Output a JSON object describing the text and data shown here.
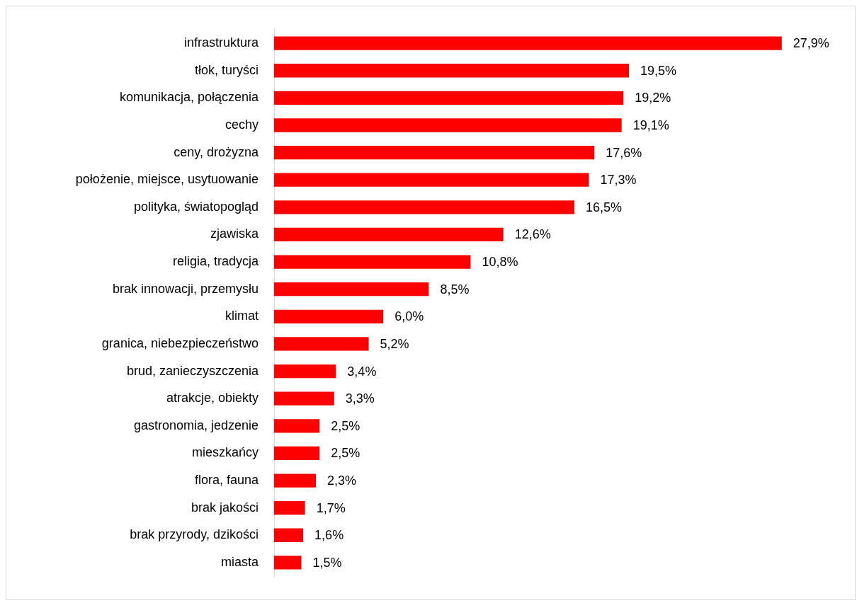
{
  "chart_data": {
    "type": "bar",
    "orientation": "horizontal",
    "tick_labels": "y",
    "categories": [
      "infrastruktura",
      "tłok, turyści",
      "komunikacja, połączenia",
      "cechy",
      "ceny, drożyzna",
      "położenie, miejsce, usytuowanie",
      "polityka, światopogląd",
      "zjawiska",
      "religia, tradycja",
      "brak innowacji, przemysłu",
      "klimat",
      "granica, niebezpieczeństwo",
      "brud, zanieczyszczenia",
      "atrakcje, obiekty",
      "gastronomia, jedzenie",
      "mieszkańcy",
      "flora, fauna",
      "brak jakości",
      "brak przyrody, dzikości",
      "miasta"
    ],
    "values": [
      27.9,
      19.5,
      19.2,
      19.1,
      17.6,
      17.3,
      16.5,
      12.6,
      10.8,
      8.5,
      6.0,
      5.2,
      3.4,
      3.3,
      2.5,
      2.5,
      2.3,
      1.7,
      1.6,
      1.5
    ],
    "value_labels": [
      "27,9%",
      "19,5%",
      "19,2%",
      "19,1%",
      "17,6%",
      "17,3%",
      "16,5%",
      "12,6%",
      "10,8%",
      "8,5%",
      "6,0%",
      "5,2%",
      "3,4%",
      "3,3%",
      "2,5%",
      "2,5%",
      "2,3%",
      "1,7%",
      "1,6%",
      "1,5%"
    ],
    "color": "#ff0000"
  }
}
